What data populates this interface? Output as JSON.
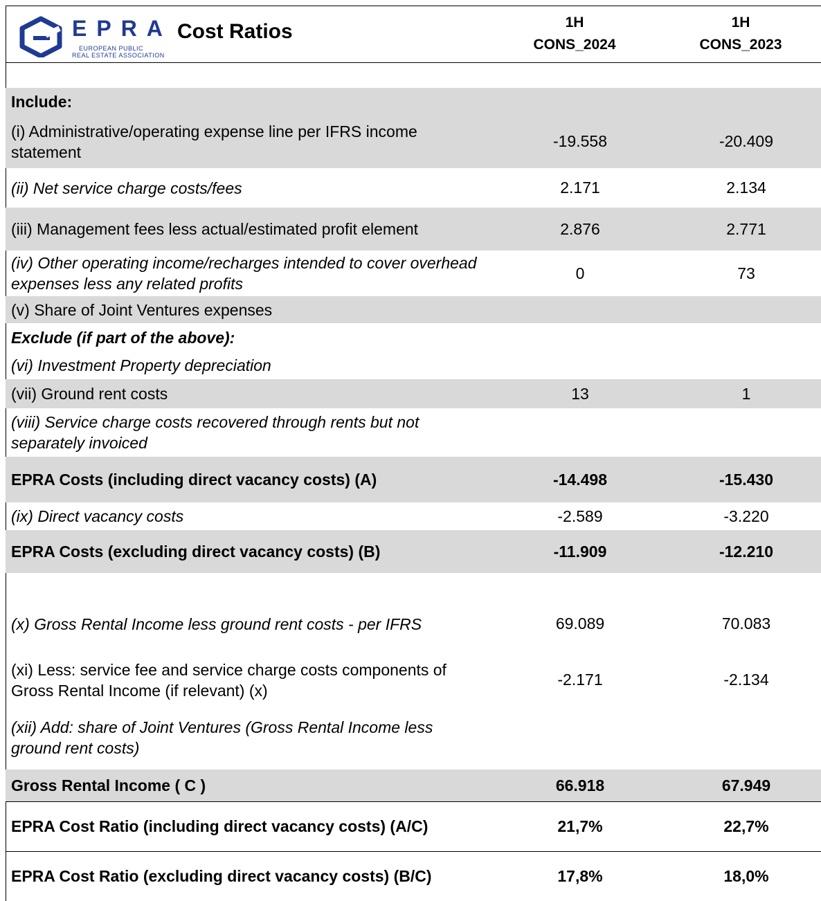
{
  "header": {
    "logo": "EPRA",
    "logo_sub": [
      "EUROPEAN PUBLIC",
      "REAL ESTATE ASSOCIATION"
    ],
    "title": "Cost Ratios",
    "columns": [
      [
        "1H",
        "CONS_2024"
      ],
      [
        "1H",
        "CONS_2023"
      ]
    ]
  },
  "table": {
    "rows": [
      {
        "label": "Include:",
        "style": "bold",
        "shade": true
      },
      {
        "label": "(i) Administrative/operating expense line per IFRS income statement",
        "values": [
          "-19.558",
          "-20.409"
        ],
        "style": "normal",
        "shade": true
      },
      {
        "label": "(ii) Net service charge costs/fees",
        "values": [
          "2.171",
          "2.134"
        ],
        "style": "italic",
        "shade": false
      },
      {
        "label": "(iii) Management fees less actual/estimated profit element",
        "values": [
          "2.876",
          "2.771"
        ],
        "style": "normal",
        "shade": true
      },
      {
        "label": "(iv) Other operating income/recharges intended to cover overhead expenses less any related profits",
        "values": [
          "0",
          "73"
        ],
        "style": "italic",
        "shade": false
      },
      {
        "label": "(v) Share of Joint Ventures expenses",
        "style": "normal",
        "shade": true
      },
      {
        "label": "Exclude (if part of the above):",
        "style": "bold-italic",
        "shade": false
      },
      {
        "label": "(vi) Investment Property depreciation",
        "style": "italic",
        "shade": false
      },
      {
        "label": "(vii) Ground rent costs",
        "values": [
          "13",
          "1"
        ],
        "style": "normal",
        "shade": true
      },
      {
        "label": "(viii) Service charge costs recovered through rents but not separately invoiced",
        "style": "italic",
        "shade": false
      },
      {
        "label": "EPRA Costs (including direct vacancy costs) (A)",
        "values": [
          "-14.498",
          "-15.430"
        ],
        "style": "bold",
        "shade": true
      },
      {
        "label": "(ix) Direct vacancy costs",
        "values": [
          "-2.589",
          "-3.220"
        ],
        "style": "italic",
        "shade": false
      },
      {
        "label": "EPRA Costs (excluding direct vacancy costs) (B)",
        "values": [
          "-11.909",
          "-12.210"
        ],
        "style": "bold",
        "shade": true
      },
      {
        "label": "(x) Gross Rental Income less ground rent costs - per IFRS",
        "values": [
          "69.089",
          "70.083"
        ],
        "style": "italic",
        "shade": false
      },
      {
        "label": "(xi) Less: service fee and service charge costs components of Gross Rental Income (if relevant) (x)",
        "values": [
          "-2.171",
          "-2.134"
        ],
        "style": "normal",
        "shade": false
      },
      {
        "label": "(xii) Add: share of Joint Ventures (Gross Rental Income less ground rent costs)",
        "style": "italic",
        "shade": false
      },
      {
        "label": "Gross Rental Income ( C )",
        "values": [
          "66.918",
          "67.949"
        ],
        "style": "bold",
        "shade": true
      },
      {
        "label": "EPRA Cost Ratio (including direct vacancy costs) (A/C)",
        "values": [
          "21,7%",
          "22,7%"
        ],
        "style": "bold",
        "shade": false
      },
      {
        "label": "EPRA Cost Ratio (excluding direct vacancy costs) (B/C)",
        "values": [
          "17,8%",
          "18,0%"
        ],
        "style": "bold",
        "shade": false
      }
    ]
  }
}
